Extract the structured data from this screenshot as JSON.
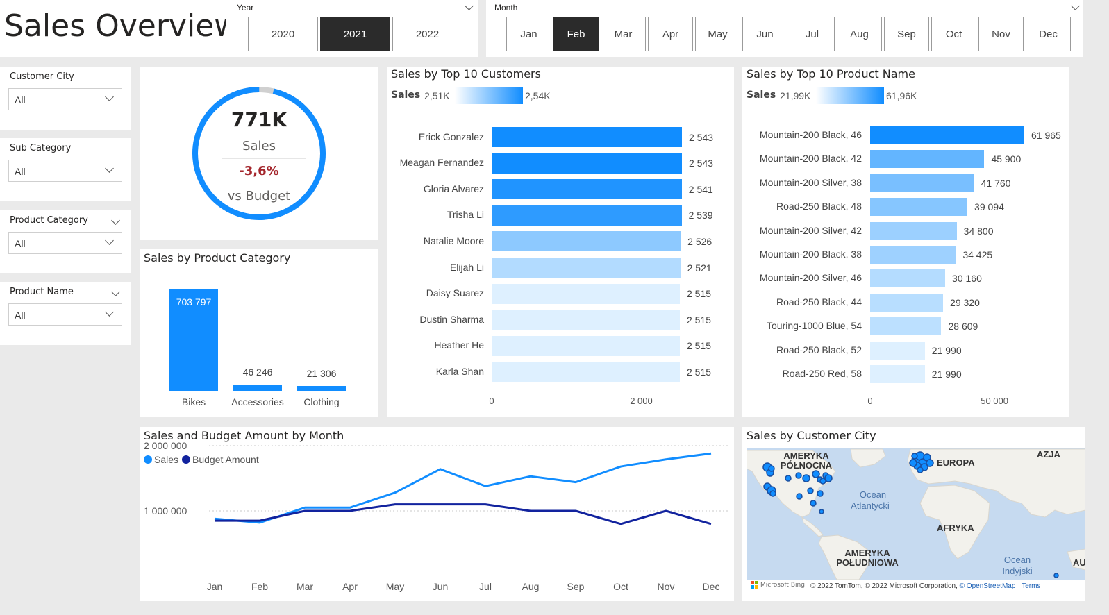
{
  "header": {
    "title": "Sales Overview",
    "year_label": "Year",
    "years": [
      {
        "label": "2020",
        "selected": false
      },
      {
        "label": "2021",
        "selected": true
      },
      {
        "label": "2022",
        "selected": false
      }
    ],
    "month_label": "Month",
    "months": [
      {
        "label": "Jan",
        "selected": false
      },
      {
        "label": "Feb",
        "selected": true
      },
      {
        "label": "Mar",
        "selected": false
      },
      {
        "label": "Apr",
        "selected": false
      },
      {
        "label": "May",
        "selected": false
      },
      {
        "label": "Jun",
        "selected": false
      },
      {
        "label": "Jul",
        "selected": false
      },
      {
        "label": "Aug",
        "selected": false
      },
      {
        "label": "Sep",
        "selected": false
      },
      {
        "label": "Oct",
        "selected": false
      },
      {
        "label": "Nov",
        "selected": false
      },
      {
        "label": "Dec",
        "selected": false
      }
    ]
  },
  "filters": [
    {
      "label": "Customer City",
      "value": "All"
    },
    {
      "label": "Sub Category",
      "value": "All"
    },
    {
      "label": "Product Category",
      "value": "All"
    },
    {
      "label": "Product Name",
      "value": "All"
    }
  ],
  "kpi": {
    "value": "771K",
    "label": "Sales",
    "delta": "-3,6%",
    "sub_label": "vs Budget",
    "ring_fill": 0.964,
    "accent": "#118dff",
    "delta_color": "#a4262c"
  },
  "category_chart": {
    "title": "Sales by Product Category",
    "chart_data": {
      "type": "bar",
      "categories": [
        "Bikes",
        "Accessories",
        "Clothing"
      ],
      "values": [
        703797,
        46246,
        21306
      ],
      "value_labels": [
        "703 797",
        "46 246",
        "21 306"
      ]
    }
  },
  "customers_chart": {
    "title": "Sales by Top 10 Customers",
    "legend_label": "Sales",
    "legend_min": "2,51K",
    "legend_max": "2,54K",
    "chart_data": {
      "type": "bar",
      "orientation": "horizontal",
      "categories": [
        "Erick Gonzalez",
        "Meagan Fernandez",
        "Gloria Alvarez",
        "Trisha Li",
        "Natalie Moore",
        "Elijah Li",
        "Daisy Suarez",
        "Dustin Sharma",
        "Heather He",
        "Karla Shan"
      ],
      "values": [
        2543,
        2543,
        2541,
        2539,
        2526,
        2521,
        2515,
        2515,
        2515,
        2515
      ],
      "value_labels": [
        "2 543",
        "2 543",
        "2 541",
        "2 539",
        "2 526",
        "2 521",
        "2 515",
        "2 515",
        "2 515",
        "2 515"
      ],
      "x_ticks": [
        "0",
        "2 000"
      ],
      "xlim": [
        0,
        2543
      ]
    }
  },
  "products_chart": {
    "title": "Sales by Top 10 Product Name",
    "legend_label": "Sales",
    "legend_min": "21,99K",
    "legend_max": "61,96K",
    "chart_data": {
      "type": "bar",
      "orientation": "horizontal",
      "categories": [
        "Mountain-200 Black, 46",
        "Mountain-200 Black, 42",
        "Mountain-200 Silver, 38",
        "Road-250 Black, 48",
        "Mountain-200 Silver, 42",
        "Mountain-200 Black, 38",
        "Mountain-200 Silver, 46",
        "Road-250 Black, 44",
        "Touring-1000 Blue, 54",
        "Road-250 Black, 52",
        "Road-250 Red, 58"
      ],
      "values": [
        61965,
        45900,
        41760,
        39094,
        34800,
        34425,
        30160,
        29320,
        28609,
        21990,
        21990
      ],
      "value_labels": [
        "61 965",
        "45 900",
        "41 760",
        "39 094",
        "34 800",
        "34 425",
        "30 160",
        "29 320",
        "28 609",
        "21 990",
        "21 990"
      ],
      "x_ticks": [
        "0",
        "50 000"
      ],
      "xlim": [
        0,
        61965
      ]
    }
  },
  "line_chart": {
    "title": "Sales and Budget Amount by Month",
    "chart_data": {
      "type": "line",
      "x": [
        "Jan",
        "Feb",
        "Mar",
        "Apr",
        "May",
        "Jun",
        "Jul",
        "Aug",
        "Sep",
        "Oct",
        "Nov",
        "Dec"
      ],
      "series": [
        {
          "name": "Sales",
          "color": "#118dff",
          "values": [
            880000,
            820000,
            1050000,
            1050000,
            1280000,
            1640000,
            1380000,
            1530000,
            1440000,
            1680000,
            1790000,
            1880000
          ]
        },
        {
          "name": "Budget Amount",
          "color": "#12239e",
          "values": [
            850000,
            850000,
            1000000,
            1000000,
            1100000,
            1100000,
            1100000,
            1000000,
            1000000,
            800000,
            1000000,
            800000
          ]
        }
      ],
      "y_ticks": [
        "2 000 000",
        "1 000 000"
      ],
      "ylim": [
        0,
        2200000
      ]
    }
  },
  "map": {
    "title": "Sales by Customer City",
    "labels": {
      "north_america": [
        "AMERYKA",
        "PÓŁNOCNA"
      ],
      "europe": "EUROPA",
      "asia": "AZJA",
      "africa": "AFRYKA",
      "south_america": [
        "AMERYKA",
        "POŁUDNIOWA"
      ],
      "atlantic": [
        "Ocean",
        "Atlantycki"
      ],
      "indian": [
        "Ocean",
        "Indyjski"
      ],
      "australia": "AU"
    },
    "attribution": "© 2022 TomTom, © 2022 Microsoft Corporation,",
    "osm_link": "© OpenStreetMap",
    "terms_link": "Terms",
    "bing_logo": "Microsoft Bing"
  }
}
